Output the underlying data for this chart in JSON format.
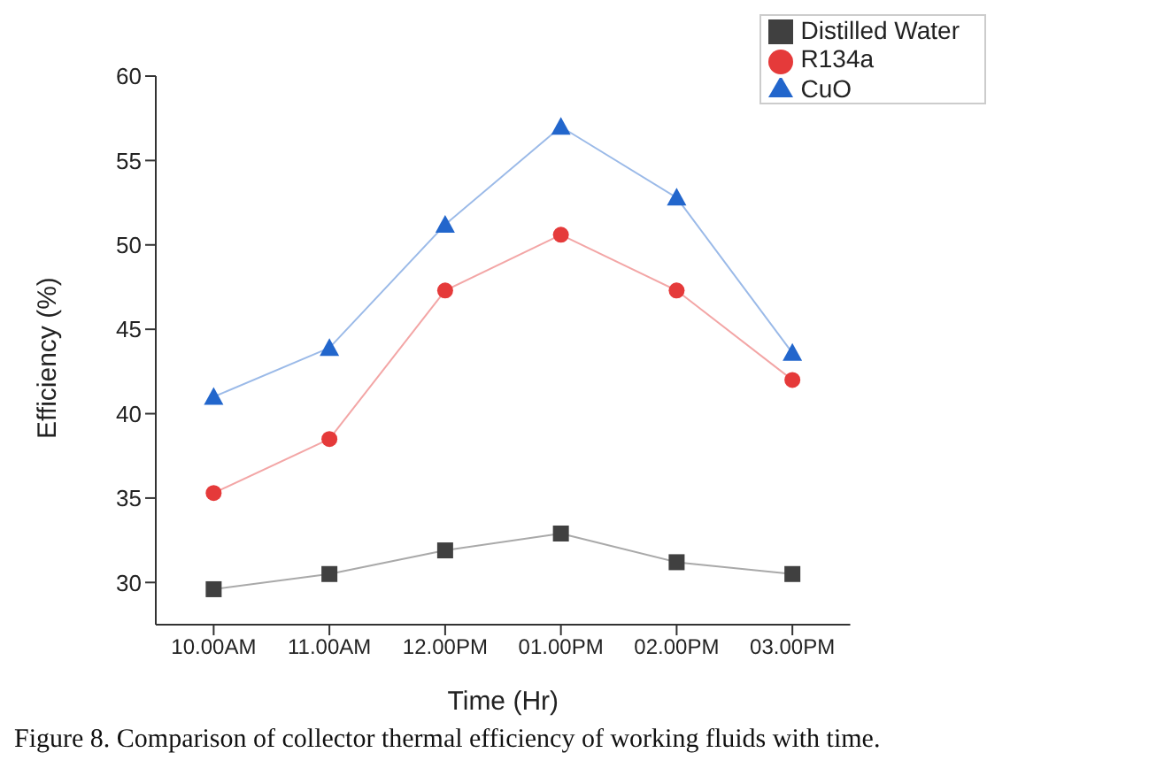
{
  "chart_data": {
    "type": "line",
    "xlabel": "Time (Hr)",
    "ylabel": "Efficiency (%)",
    "categories": [
      "10.00AM",
      "11.00AM",
      "12.00PM",
      "01.00PM",
      "02.00PM",
      "03.00PM"
    ],
    "series": [
      {
        "name": "Distilled Water",
        "color": "#404040",
        "marker": "square",
        "values": [
          29.6,
          30.5,
          31.9,
          32.9,
          31.2,
          30.5
        ]
      },
      {
        "name": "R134a",
        "color": "#e53a3a",
        "marker": "circle",
        "values": [
          35.3,
          38.5,
          47.3,
          50.6,
          47.3,
          42.0
        ]
      },
      {
        "name": "CuO",
        "color": "#2266cc",
        "marker": "triangle",
        "values": [
          41.0,
          43.9,
          51.2,
          57.0,
          52.8,
          43.6
        ]
      }
    ],
    "ylim": [
      27.5,
      60
    ],
    "yticks": [
      30,
      35,
      40,
      45,
      50,
      55,
      60
    ],
    "grid": false,
    "legend": "top right",
    "line_style": "solid",
    "annotations": [
      "Figure 8. Comparison of collector thermal efficiency of working fluids with time."
    ]
  }
}
